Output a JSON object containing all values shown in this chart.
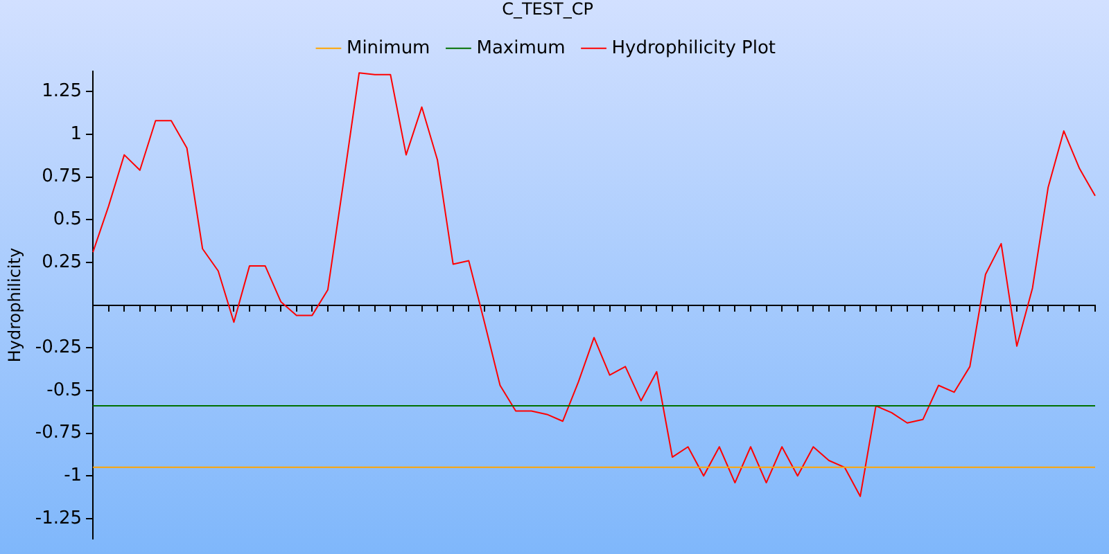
{
  "chart_data": {
    "type": "line",
    "title": "C_TEST_CP",
    "ylabel": "Hydrophilicity",
    "categories": [
      null,
      null,
      null,
      null,
      null,
      null,
      null,
      null,
      null,
      null,
      null,
      null,
      null,
      null,
      null,
      null,
      null,
      null,
      null,
      null,
      null,
      null,
      null,
      null,
      null,
      null,
      null,
      null,
      null,
      null,
      null,
      null,
      null,
      null,
      null,
      null,
      null,
      null,
      null,
      null,
      null,
      null,
      null,
      null,
      null,
      null,
      null,
      null,
      null,
      null,
      null,
      null,
      null,
      null,
      null,
      null,
      null,
      null,
      null,
      null,
      null,
      null,
      null,
      null,
      null
    ],
    "series": [
      {
        "name": "Minimum",
        "color": "#ffa500",
        "values": [
          -0.95,
          -0.95,
          -0.95,
          -0.95,
          -0.95,
          -0.95,
          -0.95,
          -0.95,
          -0.95,
          -0.95,
          -0.95,
          -0.95,
          -0.95,
          -0.95,
          -0.95,
          -0.95,
          -0.95,
          -0.95,
          -0.95,
          -0.95,
          -0.95,
          -0.95,
          -0.95,
          -0.95,
          -0.95,
          -0.95,
          -0.95,
          -0.95,
          -0.95,
          -0.95,
          -0.95,
          -0.95,
          -0.95,
          -0.95,
          -0.95,
          -0.95,
          -0.95,
          -0.95,
          -0.95,
          -0.95,
          -0.95,
          -0.95,
          -0.95,
          -0.95,
          -0.95,
          -0.95,
          -0.95,
          -0.95,
          -0.95,
          -0.95,
          -0.95,
          -0.95,
          -0.95,
          -0.95,
          -0.95,
          -0.95,
          -0.95,
          -0.95,
          -0.95,
          -0.95,
          -0.95,
          -0.95,
          -0.95,
          -0.95,
          -0.95
        ]
      },
      {
        "name": "Maximum",
        "color": "#007000",
        "values": [
          -0.59,
          -0.59,
          -0.59,
          -0.59,
          -0.59,
          -0.59,
          -0.59,
          -0.59,
          -0.59,
          -0.59,
          -0.59,
          -0.59,
          -0.59,
          -0.59,
          -0.59,
          -0.59,
          -0.59,
          -0.59,
          -0.59,
          -0.59,
          -0.59,
          -0.59,
          -0.59,
          -0.59,
          -0.59,
          -0.59,
          -0.59,
          -0.59,
          -0.59,
          -0.59,
          -0.59,
          -0.59,
          -0.59,
          -0.59,
          -0.59,
          -0.59,
          -0.59,
          -0.59,
          -0.59,
          -0.59,
          -0.59,
          -0.59,
          -0.59,
          -0.59,
          -0.59,
          -0.59,
          -0.59,
          -0.59,
          -0.59,
          -0.59,
          -0.59,
          -0.59,
          -0.59,
          -0.59,
          -0.59,
          -0.59,
          -0.59,
          -0.59,
          -0.59,
          -0.59,
          -0.59,
          -0.59,
          -0.59,
          -0.59,
          -0.59
        ]
      },
      {
        "name": "Hydrophilicity Plot",
        "color": "#ff0000",
        "values": [
          0.31,
          0.58,
          0.88,
          0.79,
          1.08,
          1.08,
          0.92,
          0.33,
          0.2,
          -0.1,
          0.23,
          0.23,
          0.02,
          -0.06,
          -0.06,
          0.09,
          0.72,
          1.36,
          1.35,
          1.35,
          0.88,
          1.16,
          0.85,
          0.24,
          0.26,
          -0.1,
          -0.47,
          -0.62,
          -0.62,
          -0.64,
          -0.68,
          -0.45,
          -0.19,
          -0.41,
          -0.36,
          -0.56,
          -0.39,
          -0.89,
          -0.83,
          -1.0,
          -0.83,
          -1.04,
          -0.83,
          -1.04,
          -0.83,
          -1.0,
          -0.83,
          -0.91,
          -0.95,
          -1.12,
          -0.59,
          -0.63,
          -0.69,
          -0.67,
          -0.47,
          -0.51,
          -0.36,
          0.18,
          0.36,
          -0.24,
          0.1,
          0.69,
          1.02,
          0.8,
          0.64
        ]
      }
    ],
    "ylim": [
      -1.37,
      1.37
    ],
    "yticks": [
      1.25,
      1,
      0.75,
      0.5,
      0.25,
      -0.25,
      -0.5,
      -0.75,
      -1,
      -1.25
    ],
    "grid": false,
    "legend": "top",
    "marker": "none",
    "line_style": "solid",
    "tick_labels": "y"
  }
}
